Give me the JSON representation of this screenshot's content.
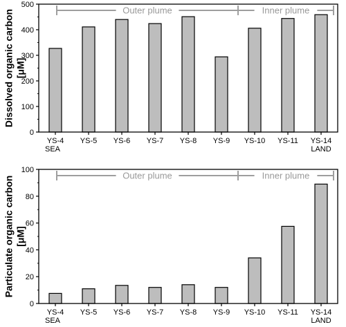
{
  "chart_data": [
    {
      "type": "bar",
      "categories": [
        "YS-4",
        "YS-5",
        "YS-6",
        "YS-7",
        "YS-8",
        "YS-9",
        "YS-10",
        "YS-11",
        "YS-14"
      ],
      "values": [
        327,
        411,
        440,
        424,
        451,
        294,
        406,
        444,
        459
      ],
      "ylabel": [
        "Dissolved organic carbon",
        "[μM]"
      ],
      "ylim": [
        0,
        500
      ],
      "yticks": [
        0,
        100,
        200,
        300,
        400,
        500
      ],
      "endpoint_labels": {
        "first": "SEA",
        "last": "LAND"
      },
      "regions": [
        {
          "name": "Outer plume",
          "from": "YS-4",
          "to": "YS-9"
        },
        {
          "name": "Inner plume",
          "from": "YS-10",
          "to": "YS-14"
        }
      ]
    },
    {
      "type": "bar",
      "categories": [
        "YS-4",
        "YS-5",
        "YS-6",
        "YS-7",
        "YS-8",
        "YS-9",
        "YS-10",
        "YS-11",
        "YS-14"
      ],
      "values": [
        7.5,
        11,
        13.5,
        12,
        14,
        12,
        34,
        57.5,
        89
      ],
      "ylabel": [
        "Particulate organic carbon",
        "[μM]"
      ],
      "ylim": [
        0,
        100
      ],
      "yticks": [
        0,
        20,
        40,
        60,
        80,
        100
      ],
      "endpoint_labels": {
        "first": "SEA",
        "last": "LAND"
      },
      "regions": [
        {
          "name": "Outer plume",
          "from": "YS-4",
          "to": "YS-9"
        },
        {
          "name": "Inner plume",
          "from": "YS-10",
          "to": "YS-14"
        }
      ]
    }
  ],
  "colors": {
    "bar_fill": "#bdbdbd",
    "region_line": "#9e9e9e",
    "axis": "#000000"
  }
}
